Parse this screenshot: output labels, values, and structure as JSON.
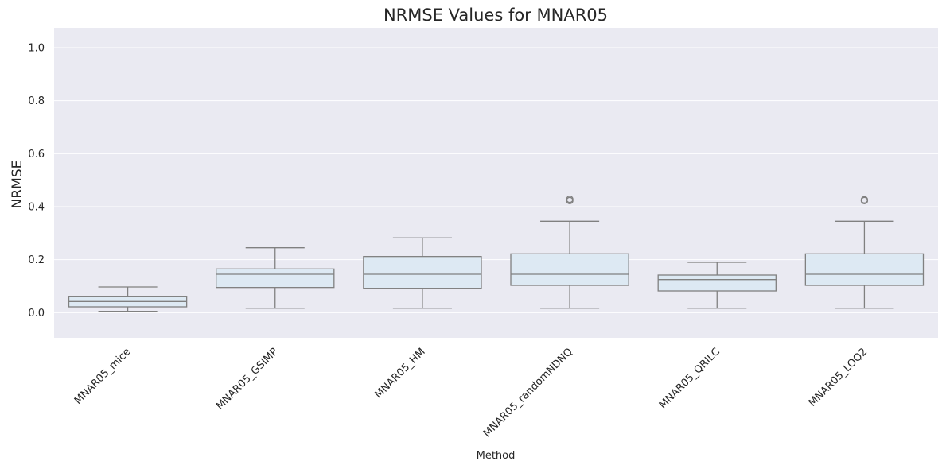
{
  "chart_data": {
    "type": "box",
    "title": "NRMSE Values for MNAR05",
    "xlabel": "Method",
    "ylabel": "NRMSE",
    "ylim": [
      -0.095,
      1.075
    ],
    "yticks": [
      0.0,
      0.2,
      0.4,
      0.6,
      0.8,
      1.0
    ],
    "ytick_labels": [
      "0.0",
      "0.2",
      "0.4",
      "0.6",
      "0.8",
      "1.0"
    ],
    "grid": true,
    "categories": [
      "MNAR05_mice",
      "MNAR05_GSIMP",
      "MNAR05_HM",
      "MNAR05_randomNDNQ",
      "MNAR05_QRILC",
      "MNAR05_LOQ2"
    ],
    "boxes": [
      {
        "whisker_low": 0.005,
        "q1": 0.022,
        "median": 0.042,
        "q3": 0.062,
        "whisker_high": 0.097,
        "outliers": []
      },
      {
        "whisker_low": 0.017,
        "q1": 0.095,
        "median": 0.145,
        "q3": 0.165,
        "whisker_high": 0.245,
        "outliers": []
      },
      {
        "whisker_low": 0.017,
        "q1": 0.092,
        "median": 0.145,
        "q3": 0.212,
        "whisker_high": 0.282,
        "outliers": []
      },
      {
        "whisker_low": 0.017,
        "q1": 0.103,
        "median": 0.145,
        "q3": 0.222,
        "whisker_high": 0.345,
        "outliers": [
          0.423,
          0.428
        ]
      },
      {
        "whisker_low": 0.017,
        "q1": 0.082,
        "median": 0.125,
        "q3": 0.142,
        "whisker_high": 0.19,
        "outliers": []
      },
      {
        "whisker_low": 0.017,
        "q1": 0.103,
        "median": 0.145,
        "q3": 0.222,
        "whisker_high": 0.345,
        "outliers": [
          0.423,
          0.426
        ]
      }
    ],
    "colors": {
      "box_fill": "#dde9f3",
      "line": "#808080",
      "plot_bg": "#eaeaf2",
      "grid": "#ffffff"
    }
  }
}
